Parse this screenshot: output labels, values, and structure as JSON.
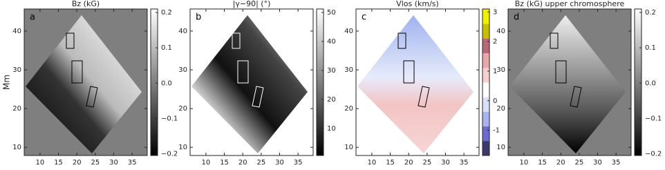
{
  "chart_data": [
    {
      "type": "map",
      "title": "Bz (kG)",
      "panel": "a",
      "ylabel": "Mm",
      "background": "#7f7f7f",
      "xlim": [
        5.7,
        39.1
      ],
      "ylim": [
        7.9,
        45.7
      ],
      "xticks": [
        10,
        15,
        20,
        25,
        30,
        35
      ],
      "yticks": [
        10,
        20,
        30,
        40
      ],
      "clim": [
        -0.205,
        0.21
      ],
      "colorbar_colors": [
        "#000000",
        "#ffffff"
      ],
      "cticks": [
        {
          "value": -0.2,
          "label": "−0.2"
        },
        {
          "value": -0.1,
          "label": "−0.1"
        },
        {
          "value": 0,
          "label": "0.0"
        },
        0.1,
        0.2
      ]
    },
    {
      "type": "map",
      "title": "|γ−90| (°)",
      "panel": "b",
      "background": "#ffffff",
      "xlim": [
        5.7,
        39.1
      ],
      "ylim": [
        7.9,
        45.7
      ],
      "xticks": [
        10,
        15,
        20,
        25,
        30,
        35
      ],
      "yticks": [
        10,
        20,
        30,
        40
      ],
      "clim": [
        0.7,
        51.2
      ],
      "colorbar_colors": [
        "#000000",
        "#ffffff"
      ],
      "cticks": [
        10,
        20,
        30,
        40,
        50
      ]
    },
    {
      "type": "map",
      "title": "Vlos (km/s)",
      "panel": "c",
      "background": "#ffffff",
      "xlim": [
        5.7,
        39.1
      ],
      "ylim": [
        7.9,
        45.7
      ],
      "xticks": [
        10,
        15,
        20,
        25,
        30,
        35
      ],
      "yticks": [
        10,
        20,
        30,
        40
      ],
      "clim": [
        -1.85,
        3.1
      ],
      "colorbar_colors": [
        "#3a3a6a",
        "#6a6ad0",
        "#a8b4f0",
        "#d8e0fa",
        "#ffffff",
        "#f6d0d0",
        "#e8a8a8",
        "#b86878",
        "#c4c000",
        "#f0f000"
      ],
      "cticks": [
        -1,
        0,
        1,
        2,
        3
      ]
    },
    {
      "type": "map",
      "title": "Bz (kG) upper chromosphere",
      "panel": "d",
      "background": "#7f7f7f",
      "xlim": [
        5.7,
        39.1
      ],
      "ylim": [
        7.9,
        45.7
      ],
      "xticks": [
        10,
        15,
        20,
        25,
        30,
        35
      ],
      "yticks": [
        10,
        20,
        30,
        40
      ],
      "clim": [
        -0.205,
        0.21
      ],
      "colorbar_colors": [
        "#000000",
        "#ffffff"
      ],
      "cticks": [
        {
          "value": -0.2,
          "label": "−0.2"
        },
        {
          "value": -0.1,
          "label": "−0.1"
        },
        {
          "value": 0,
          "label": "0.0"
        },
        0.1,
        0.2
      ]
    }
  ]
}
